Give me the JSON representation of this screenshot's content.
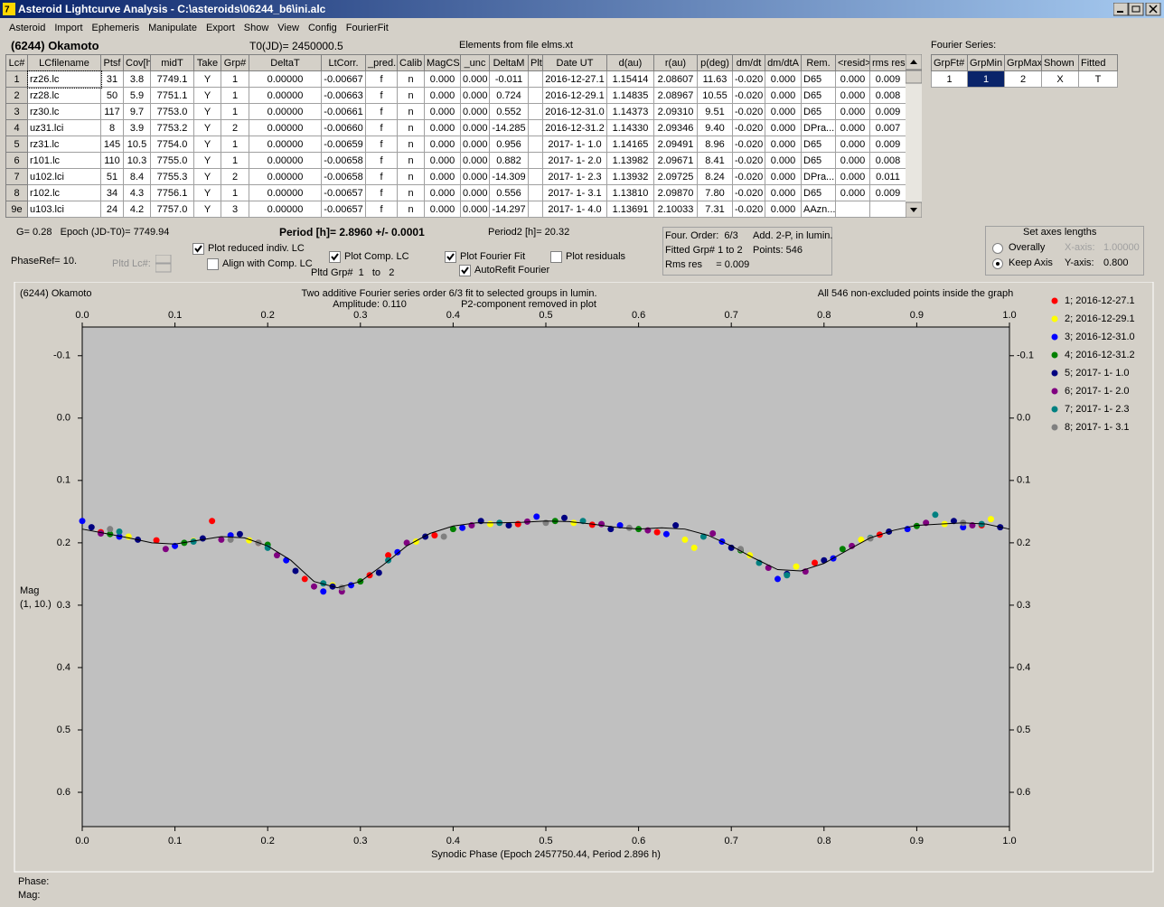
{
  "window": {
    "title": "Asteroid Lightcurve Analysis - C:\\asteroids\\06244_b6\\ini.alc"
  },
  "menu": [
    "Asteroid",
    "Import",
    "Ephemeris",
    "Manipulate",
    "Export",
    "Show",
    "View",
    "Config",
    "FourierFit"
  ],
  "header": {
    "asteroid": "(6244) Okamoto",
    "t0": "T0(JD)= 2450000.5",
    "elements": "Elements from file elms.xt",
    "fourier_label": "Fourier Series:"
  },
  "table": {
    "columns": [
      "Lc#",
      "LCfilename",
      "Ptsf",
      "Cov[h]",
      "midT",
      "Take",
      "Grp#",
      "DeltaT",
      "LtCorr.",
      "_pred.",
      "Calib",
      "MagCS",
      "_unc",
      "DeltaM",
      "Plt",
      "Date UT",
      "d(au)",
      "r(au)",
      "p(deg)",
      "dm/dt",
      "dm/dtA",
      "Rem.",
      "<resid>",
      "rms res"
    ],
    "rows": [
      [
        "1",
        "rz26.lc",
        "31",
        "3.8",
        "7749.1",
        "Y",
        "1",
        "0.00000",
        "-0.00667",
        "f",
        "n",
        "0.000",
        "0.000",
        "-0.011",
        null,
        "2016-12-27.1",
        "1.15414",
        "2.08607",
        "11.63",
        "-0.020",
        "0.000",
        "D65",
        "0.000",
        "0.009"
      ],
      [
        "2",
        "rz28.lc",
        "50",
        "5.9",
        "7751.1",
        "Y",
        "1",
        "0.00000",
        "-0.00663",
        "f",
        "n",
        "0.000",
        "0.000",
        "0.724",
        null,
        "2016-12-29.1",
        "1.14835",
        "2.08967",
        "10.55",
        "-0.020",
        "0.000",
        "D65",
        "0.000",
        "0.008"
      ],
      [
        "3",
        "rz30.lc",
        "117",
        "9.7",
        "7753.0",
        "Y",
        "1",
        "0.00000",
        "-0.00661",
        "f",
        "n",
        "0.000",
        "0.000",
        "0.552",
        null,
        "2016-12-31.0",
        "1.14373",
        "2.09310",
        "9.51",
        "-0.020",
        "0.000",
        "D65",
        "0.000",
        "0.009"
      ],
      [
        "4",
        "uz31.lci",
        "8",
        "3.9",
        "7753.2",
        "Y",
        "2",
        "0.00000",
        "-0.00660",
        "f",
        "n",
        "0.000",
        "0.000",
        "-14.285",
        null,
        "2016-12-31.2",
        "1.14330",
        "2.09346",
        "9.40",
        "-0.020",
        "0.000",
        "DPra...",
        "0.000",
        "0.007"
      ],
      [
        "5",
        "rz31.lc",
        "145",
        "10.5",
        "7754.0",
        "Y",
        "1",
        "0.00000",
        "-0.00659",
        "f",
        "n",
        "0.000",
        "0.000",
        "0.956",
        null,
        "2017- 1- 1.0",
        "1.14165",
        "2.09491",
        "8.96",
        "-0.020",
        "0.000",
        "D65",
        "0.000",
        "0.009"
      ],
      [
        "6",
        "r101.lc",
        "110",
        "10.3",
        "7755.0",
        "Y",
        "1",
        "0.00000",
        "-0.00658",
        "f",
        "n",
        "0.000",
        "0.000",
        "0.882",
        null,
        "2017- 1- 2.0",
        "1.13982",
        "2.09671",
        "8.41",
        "-0.020",
        "0.000",
        "D65",
        "0.000",
        "0.008"
      ],
      [
        "7",
        "u102.lci",
        "51",
        "8.4",
        "7755.3",
        "Y",
        "2",
        "0.00000",
        "-0.00658",
        "f",
        "n",
        "0.000",
        "0.000",
        "-14.309",
        null,
        "2017- 1- 2.3",
        "1.13932",
        "2.09725",
        "8.24",
        "-0.020",
        "0.000",
        "DPra...",
        "0.000",
        "0.011"
      ],
      [
        "8",
        "r102.lc",
        "34",
        "4.3",
        "7756.1",
        "Y",
        "1",
        "0.00000",
        "-0.00657",
        "f",
        "n",
        "0.000",
        "0.000",
        "0.556",
        null,
        "2017- 1- 3.1",
        "1.13810",
        "2.09870",
        "7.80",
        "-0.020",
        "0.000",
        "D65",
        "0.000",
        "0.009"
      ],
      [
        "9e",
        "u103.lci",
        "24",
        "4.2",
        "7757.0",
        "Y",
        "3",
        "0.00000",
        "-0.00657",
        "f",
        "n",
        "0.000",
        "0.000",
        "-14.297",
        null,
        "2017- 1- 4.0",
        "1.13691",
        "2.10033",
        "7.31",
        "-0.020",
        "0.000",
        "AAzn...",
        null,
        null
      ]
    ]
  },
  "fourier_table": {
    "columns": [
      "GrpFt#",
      "GrpMin",
      "GrpMax",
      "Shown",
      "Fitted"
    ],
    "rows": [
      [
        "1",
        "1",
        "2",
        "X",
        "T"
      ]
    ]
  },
  "info": {
    "g_epoch": "G= 0.28   Epoch (JD-T0)= 7749.94",
    "period": "Period [h]= 2.8960 +/- 0.0001",
    "period2": "Period2 [h]= 20.32",
    "phase_ref": "PhaseRef= 10.",
    "pltd_lc": "Pltd Lc#:",
    "pltd_grp": "Pltd Grp#  1   to   2"
  },
  "checkboxes": [
    {
      "label": "Plot reduced indiv. LC",
      "checked": true
    },
    {
      "label": "Align with Comp. LC",
      "checked": false
    },
    {
      "label": "Plot Comp. LC",
      "checked": true
    },
    {
      "label": "Plot Fourier Fit",
      "checked": true
    },
    {
      "label": "AutoRefit Fourier",
      "checked": true
    },
    {
      "label": "Plot residuals",
      "checked": false
    }
  ],
  "fit_box": [
    "Four. Order:  6/3",
    "Add. 2-P, in lumin.",
    "Fitted Grp# 1 to 2",
    "Points: 546",
    "Rms res     = 0.009"
  ],
  "axes_box": {
    "title": "Set axes lengths",
    "options": [
      {
        "label": "Overally",
        "selected": false
      },
      {
        "label": "Keep Axis",
        "selected": true
      }
    ],
    "x_axis": "X-axis:",
    "x_value": "1.00000",
    "y_axis": "Y-axis:",
    "y_value": "0.800"
  },
  "status": [
    "Phase:",
    "Mag:"
  ],
  "chart_data": {
    "type": "scatter",
    "title_left": "(6244) Okamoto",
    "title": "Two additive Fourier series order 6/3 fit to selected groups in lumin.",
    "subtitle_left": "Amplitude: 0.110",
    "subtitle_right": "P2-component removed in plot",
    "title_right": "All 546 non-excluded points inside the graph",
    "x_label": "Synodic Phase (Epoch 2457750.44, Period 2.896 h)",
    "y_label": [
      "Mag",
      "(1, 10.)"
    ],
    "xlim": [
      0,
      1
    ],
    "xticks": [
      {
        "value": 0,
        "label": "0.0"
      },
      0.1,
      0.2,
      0.3,
      0.4,
      0.5,
      0.6,
      0.7,
      0.8,
      0.9,
      {
        "value": 1,
        "label": "1.0"
      }
    ],
    "ylim": [
      -0.146,
      0.655
    ],
    "y_reversed": true,
    "yticks": [
      -0.1,
      {
        "value": 0,
        "label": "0.0"
      },
      0.1,
      0.2,
      0.3,
      0.4,
      0.5,
      0.6
    ],
    "grid": false,
    "legend": "right",
    "fit": {
      "color": "#000000",
      "x": [
        0,
        0.025,
        0.05,
        0.075,
        0.1,
        0.125,
        0.15,
        0.175,
        0.2,
        0.225,
        0.25,
        0.275,
        0.3,
        0.325,
        0.35,
        0.375,
        0.4,
        0.425,
        0.45,
        0.475,
        0.5,
        0.525,
        0.55,
        0.575,
        0.6,
        0.625,
        0.65,
        0.675,
        0.7,
        0.725,
        0.75,
        0.775,
        0.8,
        0.825,
        0.85,
        0.875,
        0.9,
        0.925,
        0.95,
        0.975,
        1
      ],
      "values": [
        0.178,
        0.185,
        0.192,
        0.2,
        0.202,
        0.196,
        0.19,
        0.192,
        0.205,
        0.228,
        0.262,
        0.272,
        0.262,
        0.235,
        0.205,
        0.185,
        0.173,
        0.168,
        0.168,
        0.167,
        0.165,
        0.166,
        0.17,
        0.175,
        0.178,
        0.176,
        0.178,
        0.188,
        0.205,
        0.225,
        0.243,
        0.245,
        0.233,
        0.212,
        0.192,
        0.18,
        0.172,
        0.17,
        0.168,
        0.17,
        0.178
      ]
    },
    "series": [
      {
        "name": "1; 2016-12-27.1",
        "color": "#ff0000",
        "x": [
          0.02,
          0.08,
          0.14,
          0.19,
          0.24,
          0.31,
          0.33,
          0.38,
          0.47,
          0.55,
          0.62,
          0.79,
          0.86,
          0.97
        ],
        "values": [
          0.183,
          0.196,
          0.165,
          0.2,
          0.258,
          0.252,
          0.22,
          0.188,
          0.17,
          0.171,
          0.183,
          0.232,
          0.187,
          0.172
        ]
      },
      {
        "name": "2; 2016-12-29.1",
        "color": "#ffff00",
        "x": [
          0.05,
          0.12,
          0.18,
          0.27,
          0.36,
          0.44,
          0.53,
          0.65,
          0.66,
          0.72,
          0.77,
          0.84,
          0.93,
          0.98
        ],
        "values": [
          0.19,
          0.197,
          0.196,
          0.268,
          0.198,
          0.17,
          0.168,
          0.195,
          0.208,
          0.22,
          0.238,
          0.195,
          0.17,
          0.162
        ]
      },
      {
        "name": "3; 2016-12-31.0",
        "color": "#0000ff",
        "x": [
          0,
          0.04,
          0.1,
          0.16,
          0.22,
          0.26,
          0.29,
          0.34,
          0.41,
          0.49,
          0.58,
          0.63,
          0.69,
          0.75,
          0.81,
          0.89,
          0.95
        ],
        "values": [
          0.165,
          0.19,
          0.205,
          0.188,
          0.228,
          0.278,
          0.268,
          0.215,
          0.176,
          0.158,
          0.172,
          0.186,
          0.198,
          0.258,
          0.225,
          0.178,
          0.175
        ]
      },
      {
        "name": "4; 2016-12-31.2",
        "color": "#008000",
        "x": [
          0.03,
          0.11,
          0.2,
          0.3,
          0.4,
          0.51,
          0.6,
          0.71,
          0.82,
          0.9
        ],
        "values": [
          0.186,
          0.2,
          0.203,
          0.262,
          0.178,
          0.165,
          0.178,
          0.212,
          0.21,
          0.173
        ]
      },
      {
        "name": "5; 2017- 1- 1.0",
        "color": "#000080",
        "x": [
          0.01,
          0.06,
          0.13,
          0.17,
          0.23,
          0.27,
          0.32,
          0.37,
          0.43,
          0.46,
          0.52,
          0.57,
          0.64,
          0.7,
          0.76,
          0.8,
          0.87,
          0.94,
          0.99
        ],
        "values": [
          0.175,
          0.195,
          0.193,
          0.186,
          0.245,
          0.27,
          0.248,
          0.19,
          0.165,
          0.172,
          0.16,
          0.178,
          0.172,
          0.208,
          0.25,
          0.228,
          0.182,
          0.165,
          0.175
        ]
      },
      {
        "name": "6; 2017- 1- 2.0",
        "color": "#800080",
        "x": [
          0.02,
          0.09,
          0.15,
          0.21,
          0.25,
          0.28,
          0.35,
          0.42,
          0.48,
          0.56,
          0.61,
          0.68,
          0.74,
          0.78,
          0.83,
          0.91,
          0.96
        ],
        "values": [
          0.185,
          0.21,
          0.195,
          0.22,
          0.27,
          0.278,
          0.2,
          0.172,
          0.166,
          0.17,
          0.18,
          0.185,
          0.24,
          0.246,
          0.205,
          0.168,
          0.172
        ]
      },
      {
        "name": "7; 2017- 1- 2.3",
        "color": "#008080",
        "x": [
          0.04,
          0.12,
          0.2,
          0.26,
          0.33,
          0.45,
          0.54,
          0.67,
          0.73,
          0.76,
          0.85,
          0.92,
          0.97
        ],
        "values": [
          0.182,
          0.198,
          0.208,
          0.265,
          0.228,
          0.168,
          0.165,
          0.19,
          0.232,
          0.252,
          0.192,
          0.155,
          0.17
        ]
      },
      {
        "name": "8; 2017- 1- 3.1",
        "color": "#808080",
        "x": [
          0.03,
          0.16,
          0.19,
          0.28,
          0.39,
          0.5,
          0.59,
          0.71,
          0.85,
          0.95
        ],
        "values": [
          0.178,
          0.195,
          0.2,
          0.272,
          0.19,
          0.168,
          0.176,
          0.21,
          0.193,
          0.168
        ]
      }
    ]
  }
}
